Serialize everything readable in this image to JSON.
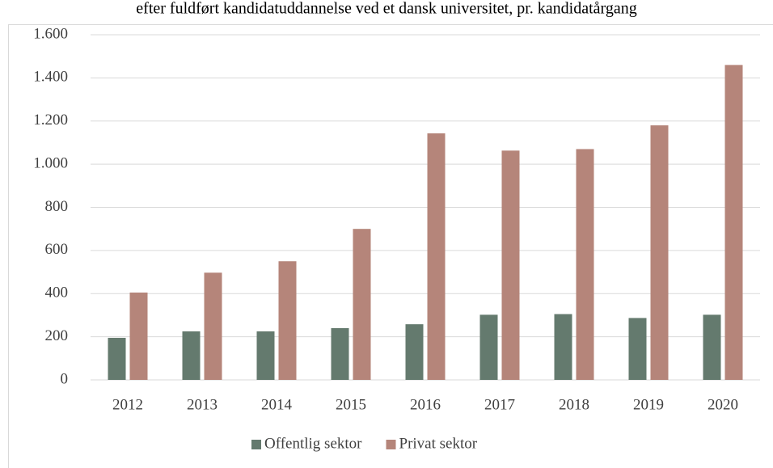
{
  "chart_data": {
    "type": "bar",
    "title": "efter fuldført kandidatuddannelse ved et dansk universitet, pr. kandidatårgang",
    "categories": [
      "2012",
      "2013",
      "2014",
      "2015",
      "2016",
      "2017",
      "2018",
      "2019",
      "2020"
    ],
    "series": [
      {
        "name": "Offentlig sektor",
        "color": "#647a6e",
        "values": [
          195,
          225,
          225,
          240,
          258,
          302,
          305,
          287,
          302
        ]
      },
      {
        "name": "Privat sektor",
        "color": "#b5857a",
        "values": [
          405,
          497,
          550,
          700,
          1143,
          1063,
          1070,
          1180,
          1460
        ]
      }
    ],
    "ylim": [
      0,
      1600
    ],
    "yticks": [
      0,
      200,
      400,
      600,
      800,
      {
        "value": 1000,
        "label": "1.000"
      },
      {
        "value": 1200,
        "label": "1.200"
      },
      {
        "value": 1400,
        "label": "1.400"
      },
      {
        "value": 1600,
        "label": "1.600"
      }
    ],
    "grid": true,
    "legend": "bottom"
  }
}
